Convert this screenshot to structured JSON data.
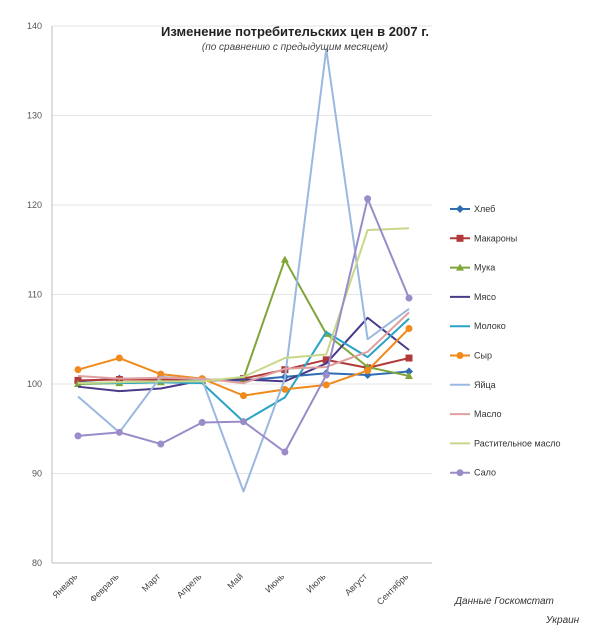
{
  "chart_data": {
    "type": "line",
    "title": "Изменение потребительских цен в 2007 г.",
    "subtitle": "(по сравнению с предыдущим месяцем)",
    "xlabel": "",
    "ylabel": "",
    "ylim": [
      80,
      140
    ],
    "yticks": [
      80,
      90,
      100,
      110,
      120,
      130,
      140
    ],
    "ytick_labels": [
      "80",
      "90",
      "100",
      "110",
      "120",
      "130",
      "140"
    ],
    "grid": true,
    "legend_position": "right",
    "categories": [
      "Январь",
      "Февраль",
      "Март",
      "Апрель",
      "Май",
      "Июнь",
      "Июль",
      "Август",
      "Сентябрь"
    ],
    "series": [
      {
        "name": "Хлеб",
        "color": "#2f6db3",
        "marker": "diamond",
        "values": [
          100.3,
          100.6,
          100.6,
          100.4,
          100.4,
          100.8,
          101.2,
          101.0,
          101.4
        ]
      },
      {
        "name": "Макароны",
        "color": "#b03a3a",
        "marker": "square",
        "values": [
          100.4,
          100.5,
          100.5,
          100.4,
          100.6,
          101.6,
          102.7,
          101.8,
          102.9
        ]
      },
      {
        "name": "Мука",
        "color": "#7fa63a",
        "marker": "triangle",
        "values": [
          100.0,
          100.1,
          100.2,
          100.4,
          100.6,
          113.9,
          105.6,
          101.9,
          100.9
        ]
      },
      {
        "name": "Мясо",
        "color": "#4b3a8a",
        "marker": "none",
        "values": [
          99.7,
          99.2,
          99.5,
          100.4,
          100.5,
          100.3,
          102.3,
          107.4,
          103.8
        ]
      },
      {
        "name": "Молоко",
        "color": "#2aa3c6",
        "marker": "none",
        "values": [
          100.1,
          100.1,
          100.2,
          100.1,
          95.8,
          98.5,
          105.8,
          103.0,
          107.3
        ]
      },
      {
        "name": "Сыр",
        "color": "#f08a1c",
        "marker": "circle",
        "values": [
          101.6,
          102.9,
          101.1,
          100.6,
          98.7,
          99.4,
          99.9,
          101.5,
          106.2
        ]
      },
      {
        "name": "Яйца",
        "color": "#9bb8e0",
        "marker": "none",
        "values": [
          98.6,
          94.6,
          100.8,
          100.5,
          88.0,
          100.6,
          137.4,
          105.0,
          108.4
        ]
      },
      {
        "name": "Масло",
        "color": "#e0a0a0",
        "marker": "none",
        "values": [
          100.9,
          100.6,
          100.7,
          100.6,
          100.1,
          101.7,
          101.9,
          103.6,
          108.0
        ]
      },
      {
        "name": "Растительное масло",
        "color": "#c8d88a",
        "marker": "none",
        "values": [
          100.1,
          100.2,
          100.3,
          100.3,
          100.8,
          102.9,
          103.3,
          117.2,
          117.4
        ]
      },
      {
        "name": "Сало",
        "color": "#9a8cc8",
        "marker": "circle",
        "values": [
          94.2,
          94.6,
          93.3,
          95.7,
          95.8,
          92.4,
          101.0,
          120.7,
          109.6
        ]
      }
    ],
    "source_line1": "Данные Госкомстат",
    "source_line2": "Украин"
  }
}
